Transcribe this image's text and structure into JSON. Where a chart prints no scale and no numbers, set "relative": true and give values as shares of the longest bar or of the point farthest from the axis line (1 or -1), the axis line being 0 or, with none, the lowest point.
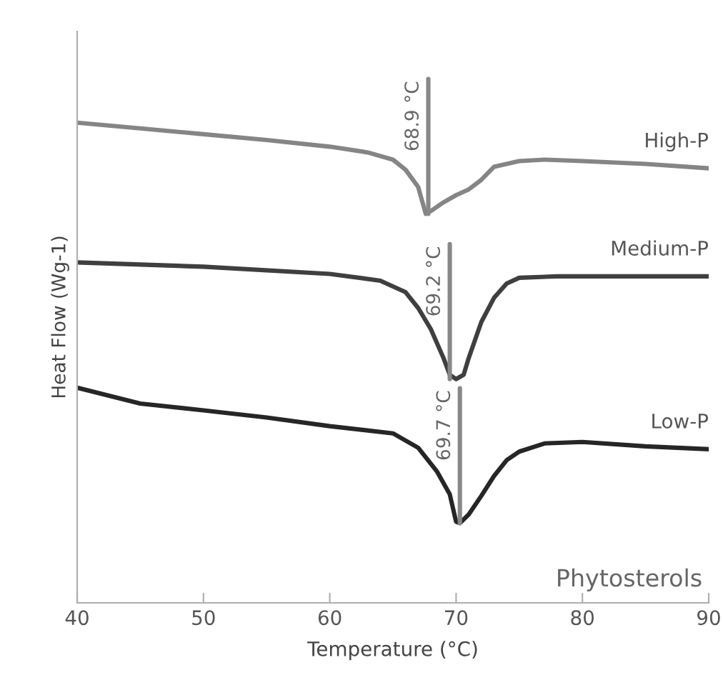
{
  "chart_data": {
    "type": "line",
    "relative": true,
    "xlabel": "Temperature (°C)",
    "ylabel": "Heat Flow (Wg-1)",
    "xlim": [
      40,
      90
    ],
    "xticks": [
      40,
      50,
      60,
      70,
      80,
      90
    ],
    "grid": false,
    "legend": false,
    "marker": "none",
    "line_style": "solid",
    "series": [
      {
        "name": "High-P",
        "color": "#858585",
        "x": [
          40,
          45,
          50,
          55,
          60,
          63,
          65,
          66,
          67,
          67.6,
          68,
          69,
          70,
          71,
          72,
          73,
          75,
          77,
          80,
          85,
          90
        ],
        "values": [
          1.0,
          0.988,
          0.976,
          0.964,
          0.95,
          0.938,
          0.923,
          0.902,
          0.866,
          0.81,
          0.816,
          0.834,
          0.849,
          0.861,
          0.881,
          0.908,
          0.92,
          0.923,
          0.92,
          0.914,
          0.905
        ]
      },
      {
        "name": "Medium-P",
        "color": "#3f3f3f",
        "x": [
          40,
          50,
          60,
          64,
          66,
          67,
          68,
          69,
          69.5,
          70,
          70.6,
          71,
          72,
          73,
          74,
          75,
          78,
          85,
          90
        ],
        "values": [
          0.709,
          0.7,
          0.685,
          0.671,
          0.647,
          0.614,
          0.57,
          0.51,
          0.475,
          0.466,
          0.475,
          0.51,
          0.585,
          0.635,
          0.665,
          0.677,
          0.68,
          0.68,
          0.68
        ]
      },
      {
        "name": "Low-P",
        "color": "#262626",
        "x": [
          40,
          45,
          50,
          55,
          60,
          65,
          67,
          68.5,
          69.5,
          70,
          70.3,
          71,
          72,
          73,
          74,
          75,
          77,
          80,
          85,
          90
        ],
        "values": [
          0.448,
          0.415,
          0.401,
          0.386,
          0.368,
          0.353,
          0.323,
          0.273,
          0.226,
          0.169,
          0.166,
          0.184,
          0.223,
          0.264,
          0.297,
          0.315,
          0.332,
          0.335,
          0.326,
          0.32
        ]
      }
    ],
    "annotations": [
      {
        "text": "68.9 °C",
        "x": 67.8,
        "y": 0.81
      },
      {
        "text": "69.2 °C",
        "x": 69.5,
        "y": 0.466
      },
      {
        "text": "69.7 °C",
        "x": 70.3,
        "y": 0.166
      },
      "Phytosterols"
    ]
  }
}
